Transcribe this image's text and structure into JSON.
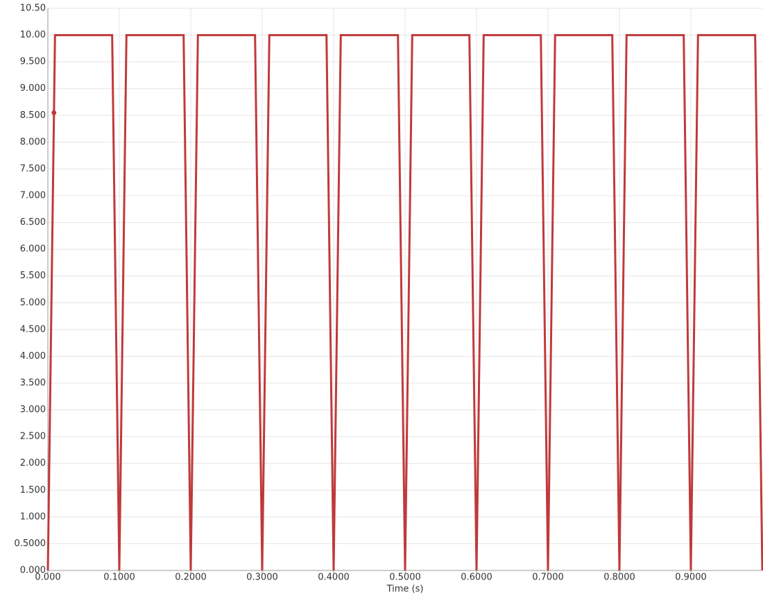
{
  "chart_data": {
    "type": "line",
    "x_label": "Time (s)",
    "xlim": [
      0,
      1.0
    ],
    "ylim": [
      0,
      10.5
    ],
    "xticks": [
      {
        "value": 0,
        "label": "0.000"
      },
      {
        "value": 0.1,
        "label": "0.1000"
      },
      {
        "value": 0.2,
        "label": "0.2000"
      },
      {
        "value": 0.3,
        "label": "0.3000"
      },
      {
        "value": 0.4,
        "label": "0.4000"
      },
      {
        "value": 0.5,
        "label": "0.5000"
      },
      {
        "value": 0.6,
        "label": "0.6000"
      },
      {
        "value": 0.7,
        "label": "0.7000"
      },
      {
        "value": 0.8,
        "label": "0.8000"
      },
      {
        "value": 0.9,
        "label": "0.9000"
      }
    ],
    "yticks": [
      {
        "value": 0,
        "label": "0.000"
      },
      {
        "value": 0.5,
        "label": "0.5000"
      },
      {
        "value": 1,
        "label": "1.000"
      },
      {
        "value": 1.5,
        "label": "1.500"
      },
      {
        "value": 2,
        "label": "2.000"
      },
      {
        "value": 2.5,
        "label": "2.500"
      },
      {
        "value": 3,
        "label": "3.000"
      },
      {
        "value": 3.5,
        "label": "3.500"
      },
      {
        "value": 4,
        "label": "4.000"
      },
      {
        "value": 4.5,
        "label": "4.500"
      },
      {
        "value": 5,
        "label": "5.000"
      },
      {
        "value": 5.5,
        "label": "5.500"
      },
      {
        "value": 6,
        "label": "6.000"
      },
      {
        "value": 6.5,
        "label": "6.500"
      },
      {
        "value": 7,
        "label": "7.000"
      },
      {
        "value": 7.5,
        "label": "7.500"
      },
      {
        "value": 8,
        "label": "8.000"
      },
      {
        "value": 8.5,
        "label": "8.500"
      },
      {
        "value": 9,
        "label": "9.000"
      },
      {
        "value": 9.5,
        "label": "9.500"
      },
      {
        "value": 10,
        "label": "10.00"
      },
      {
        "value": 10.5,
        "label": "10.50"
      }
    ],
    "grid": true,
    "x": [
      0,
      0.01,
      0.09,
      0.1,
      0.11,
      0.19,
      0.2,
      0.21,
      0.29,
      0.3,
      0.31,
      0.39,
      0.4,
      0.41,
      0.49,
      0.5,
      0.51,
      0.59,
      0.6,
      0.61,
      0.69,
      0.7,
      0.71,
      0.79,
      0.8,
      0.81,
      0.89,
      0.9,
      0.91,
      0.99,
      1.0
    ],
    "series": [
      {
        "color": "#c0393b",
        "values": [
          0,
          10,
          10,
          0,
          10,
          10,
          0,
          10,
          10,
          0,
          10,
          10,
          0,
          10,
          10,
          0,
          10,
          10,
          0,
          10,
          10,
          0,
          10,
          10,
          0,
          10,
          10,
          0,
          10,
          10,
          0
        ]
      }
    ],
    "marker": {
      "x": 0.0085,
      "y": 8.55
    }
  }
}
